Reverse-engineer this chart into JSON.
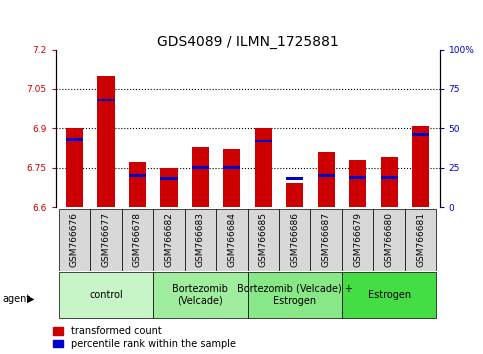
{
  "title": "GDS4089 / ILMN_1725881",
  "samples": [
    "GSM766676",
    "GSM766677",
    "GSM766678",
    "GSM766682",
    "GSM766683",
    "GSM766684",
    "GSM766685",
    "GSM766686",
    "GSM766687",
    "GSM766679",
    "GSM766680",
    "GSM766681"
  ],
  "red_values": [
    6.9,
    7.1,
    6.77,
    6.75,
    6.83,
    6.82,
    6.9,
    6.69,
    6.81,
    6.78,
    6.79,
    6.91
  ],
  "blue_values": [
    43,
    68,
    20,
    18,
    25,
    25,
    42,
    18,
    20,
    19,
    19,
    46
  ],
  "ymin": 6.6,
  "ymax": 7.2,
  "yticks": [
    6.6,
    6.75,
    6.9,
    7.05,
    7.2
  ],
  "right_yticks": [
    0,
    25,
    50,
    75,
    100
  ],
  "groups": [
    {
      "label": "control",
      "start": 0,
      "end": 3,
      "color": "#c8f5c8"
    },
    {
      "label": "Bortezomib\n(Velcade)",
      "start": 3,
      "end": 6,
      "color": "#a0eda0"
    },
    {
      "label": "Bortezomib (Velcade) +\nEstrogen",
      "start": 6,
      "end": 9,
      "color": "#88e888"
    },
    {
      "label": "Estrogen",
      "start": 9,
      "end": 12,
      "color": "#44dd44"
    }
  ],
  "bar_color": "#cc0000",
  "blue_color": "#0000cc",
  "bar_width": 0.55,
  "legend_red": "transformed count",
  "legend_blue": "percentile rank within the sample",
  "agent_label": "agent",
  "left_label_color": "#cc0000",
  "right_label_color": "#0000cc",
  "title_fontsize": 10,
  "tick_fontsize": 6.5,
  "group_fontsize": 7.5,
  "legend_fontsize": 7
}
